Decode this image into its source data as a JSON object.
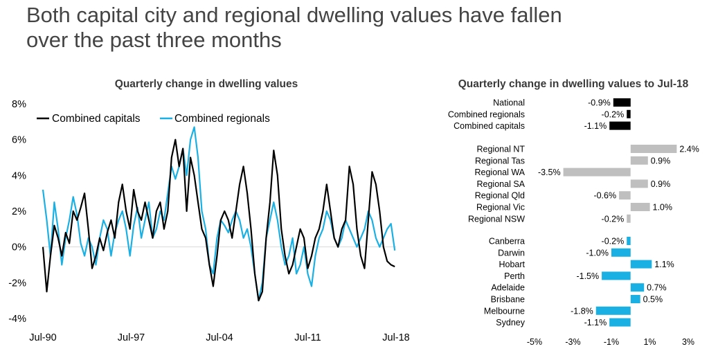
{
  "slide": {
    "title_line1": "Both capital city and regional dwelling values have fallen",
    "title_line2": "over the past three months"
  },
  "colors": {
    "capitals": "#000000",
    "regionals": "#1ab0e3",
    "bar_national": "#000000",
    "bar_regional": "#bfbfbf",
    "bar_city": "#1ab0e3"
  },
  "chart_data": [
    {
      "type": "line",
      "title": "Quarterly change in dwelling values",
      "xlabel": "",
      "ylabel": "",
      "ylim": [
        -4,
        8
      ],
      "y_ticks": [
        "8%",
        "6%",
        "4%",
        "2%",
        "0%",
        "-2%",
        "-4%"
      ],
      "y_tick_values": [
        8,
        6,
        4,
        2,
        0,
        -2,
        -4
      ],
      "x_ticks": [
        "Jul-90",
        "Jul-97",
        "Jul-04",
        "Jul-11",
        "Jul-18"
      ],
      "x_tick_years": [
        1990.5,
        1997.5,
        2004.5,
        2011.5,
        2018.5
      ],
      "x_range": [
        1990.5,
        2018.5
      ],
      "legend": [
        "Combined capitals",
        "Combined regionals"
      ],
      "legend_position": "top-left",
      "series": [
        {
          "name": "Combined capitals",
          "x": [
            1990.5,
            1990.8,
            1991.1,
            1991.4,
            1991.7,
            1992.0,
            1992.3,
            1992.6,
            1992.9,
            1993.2,
            1993.5,
            1993.8,
            1994.1,
            1994.4,
            1994.7,
            1995.0,
            1995.3,
            1995.6,
            1995.9,
            1996.2,
            1996.5,
            1996.8,
            1997.1,
            1997.4,
            1997.7,
            1998.0,
            1998.3,
            1998.6,
            1998.9,
            1999.2,
            1999.5,
            1999.8,
            2000.1,
            2000.4,
            2000.7,
            2001.0,
            2001.3,
            2001.6,
            2001.9,
            2002.2,
            2002.5,
            2002.8,
            2003.1,
            2003.4,
            2003.7,
            2004.0,
            2004.3,
            2004.6,
            2004.9,
            2005.2,
            2005.5,
            2005.8,
            2006.1,
            2006.4,
            2006.7,
            2007.0,
            2007.3,
            2007.6,
            2007.9,
            2008.2,
            2008.5,
            2008.8,
            2009.1,
            2009.4,
            2009.7,
            2010.0,
            2010.3,
            2010.6,
            2010.9,
            2011.2,
            2011.5,
            2011.8,
            2012.1,
            2012.4,
            2012.7,
            2013.0,
            2013.3,
            2013.6,
            2013.9,
            2014.2,
            2014.5,
            2014.8,
            2015.1,
            2015.4,
            2015.7,
            2016.0,
            2016.3,
            2016.6,
            2016.9,
            2017.2,
            2017.5,
            2017.8,
            2018.1,
            2018.4
          ],
          "values": [
            0.0,
            -2.5,
            -0.5,
            1.2,
            0.5,
            -0.5,
            0.8,
            0.2,
            2.0,
            1.5,
            2.2,
            3.0,
            1.0,
            -1.2,
            -0.5,
            0.5,
            -0.2,
            0.8,
            1.5,
            0.5,
            2.5,
            3.5,
            2.0,
            1.0,
            3.2,
            2.0,
            1.5,
            2.5,
            1.5,
            0.5,
            2.0,
            2.5,
            1.0,
            2.0,
            5.0,
            6.0,
            4.5,
            5.5,
            2.0,
            5.0,
            4.0,
            2.5,
            1.0,
            0.5,
            -1.0,
            -2.2,
            -0.5,
            1.5,
            2.0,
            1.5,
            0.5,
            2.0,
            3.5,
            4.5,
            3.0,
            1.0,
            -1.5,
            -3.0,
            -2.5,
            0.5,
            2.5,
            5.4,
            4.0,
            1.0,
            -0.5,
            -1.5,
            -1.0,
            0.0,
            1.0,
            0.5,
            -1.2,
            -0.5,
            0.5,
            1.0,
            2.0,
            3.5,
            2.0,
            0.5,
            0.0,
            1.0,
            1.5,
            4.5,
            3.5,
            1.0,
            -0.5,
            -1.2,
            1.5,
            4.2,
            3.5,
            2.0,
            0.0,
            -0.8,
            -1.0,
            -1.1
          ]
        },
        {
          "name": "Combined regionals",
          "x": [
            1990.5,
            1990.8,
            1991.1,
            1991.4,
            1991.7,
            1992.0,
            1992.3,
            1992.6,
            1992.9,
            1993.2,
            1993.5,
            1993.8,
            1994.1,
            1994.4,
            1994.7,
            1995.0,
            1995.3,
            1995.6,
            1995.9,
            1996.2,
            1996.5,
            1996.8,
            1997.1,
            1997.4,
            1997.7,
            1998.0,
            1998.3,
            1998.6,
            1998.9,
            1999.2,
            1999.5,
            1999.8,
            2000.1,
            2000.4,
            2000.7,
            2001.0,
            2001.3,
            2001.6,
            2001.9,
            2002.2,
            2002.5,
            2002.8,
            2003.1,
            2003.4,
            2003.7,
            2004.0,
            2004.3,
            2004.6,
            2004.9,
            2005.2,
            2005.5,
            2005.8,
            2006.1,
            2006.4,
            2006.7,
            2007.0,
            2007.3,
            2007.6,
            2007.9,
            2008.2,
            2008.5,
            2008.8,
            2009.1,
            2009.4,
            2009.7,
            2010.0,
            2010.3,
            2010.6,
            2010.9,
            2011.2,
            2011.5,
            2011.8,
            2012.1,
            2012.4,
            2012.7,
            2013.0,
            2013.3,
            2013.6,
            2013.9,
            2014.2,
            2014.5,
            2014.8,
            2015.1,
            2015.4,
            2015.7,
            2016.0,
            2016.3,
            2016.6,
            2016.9,
            2017.2,
            2017.5,
            2017.8,
            2018.1,
            2018.4
          ],
          "values": [
            3.2,
            1.5,
            -0.5,
            2.5,
            1.0,
            -1.0,
            0.5,
            1.5,
            2.8,
            1.8,
            0.2,
            -0.5,
            0.5,
            0.0,
            -1.0,
            0.5,
            1.5,
            1.0,
            -0.5,
            0.8,
            1.5,
            2.0,
            1.0,
            -0.5,
            1.2,
            2.2,
            0.5,
            1.5,
            2.5,
            0.5,
            1.0,
            2.0,
            1.5,
            3.0,
            4.5,
            3.8,
            4.5,
            5.5,
            4.0,
            6.0,
            6.7,
            5.0,
            2.0,
            1.0,
            -1.0,
            -1.5,
            0.5,
            1.5,
            1.2,
            0.8,
            1.5,
            2.0,
            1.5,
            0.5,
            1.0,
            0.0,
            -1.5,
            -3.0,
            -2.0,
            0.5,
            1.5,
            2.5,
            1.5,
            0.0,
            -1.0,
            -0.5,
            0.5,
            -1.5,
            -1.0,
            0.0,
            -1.5,
            -2.2,
            -0.5,
            0.5,
            1.0,
            2.0,
            1.5,
            0.5,
            0.0,
            0.5,
            1.5,
            1.0,
            0.5,
            0.0,
            0.5,
            1.0,
            2.0,
            1.5,
            0.5,
            0.0,
            0.5,
            1.0,
            1.3,
            -0.2
          ]
        }
      ]
    },
    {
      "type": "bar",
      "orientation": "horizontal",
      "title": "Quarterly change in dwelling values to Jul-18",
      "xlim": [
        -5,
        3
      ],
      "x_ticks": [
        "-5%",
        "-3%",
        "-1%",
        "1%",
        "3%"
      ],
      "x_tick_values": [
        -5,
        -3,
        -1,
        1,
        3
      ],
      "groups": [
        {
          "name": "national",
          "color_key": "bar_national",
          "bars": [
            {
              "label": "National",
              "value": -0.9,
              "value_label": "-0.9%"
            },
            {
              "label": "Combined regionals",
              "value": -0.2,
              "value_label": "-0.2%"
            },
            {
              "label": "Combined capitals",
              "value": -1.1,
              "value_label": "-1.1%"
            }
          ]
        },
        {
          "name": "regional",
          "color_key": "bar_regional",
          "bars": [
            {
              "label": "Regional NT",
              "value": 2.4,
              "value_label": "2.4%"
            },
            {
              "label": "Regional Tas",
              "value": 0.9,
              "value_label": "0.9%"
            },
            {
              "label": "Regional WA",
              "value": -3.5,
              "value_label": "-3.5%"
            },
            {
              "label": "Regional SA",
              "value": 0.9,
              "value_label": "0.9%"
            },
            {
              "label": "Regional Qld",
              "value": -0.6,
              "value_label": "-0.6%"
            },
            {
              "label": "Regional Vic",
              "value": 1.0,
              "value_label": "1.0%"
            },
            {
              "label": "Regional NSW",
              "value": -0.2,
              "value_label": "-0.2%"
            }
          ]
        },
        {
          "name": "cities",
          "color_key": "bar_city",
          "bars": [
            {
              "label": "Canberra",
              "value": -0.2,
              "value_label": "-0.2%"
            },
            {
              "label": "Darwin",
              "value": -1.0,
              "value_label": "-1.0%"
            },
            {
              "label": "Hobart",
              "value": 1.1,
              "value_label": "1.1%"
            },
            {
              "label": "Perth",
              "value": -1.5,
              "value_label": "-1.5%"
            },
            {
              "label": "Adelaide",
              "value": 0.7,
              "value_label": "0.7%"
            },
            {
              "label": "Brisbane",
              "value": 0.5,
              "value_label": "0.5%"
            },
            {
              "label": "Melbourne",
              "value": -1.8,
              "value_label": "-1.8%"
            },
            {
              "label": "Sydney",
              "value": -1.1,
              "value_label": "-1.1%"
            }
          ]
        }
      ]
    }
  ]
}
